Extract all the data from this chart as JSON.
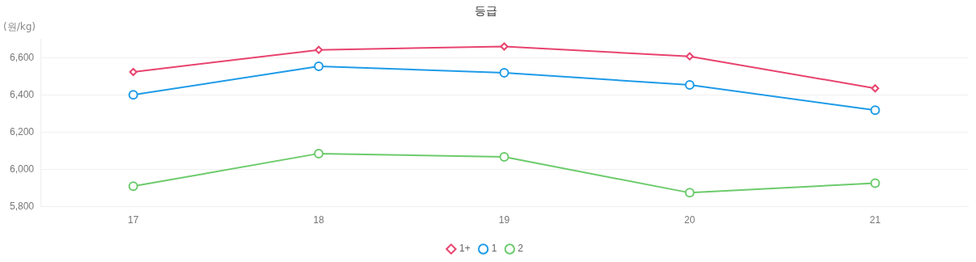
{
  "chart_data": {
    "type": "line",
    "title": "등급",
    "ylabel": "(원/kg)",
    "categories": [
      "17",
      "18",
      "19",
      "20",
      "21"
    ],
    "series": [
      {
        "name": "1+",
        "color": "#e8436e",
        "marker": "diamond",
        "values": [
          6525,
          6644,
          6662,
          6609,
          6437
        ]
      },
      {
        "name": "1",
        "color": "#1e9be8",
        "marker": "circle",
        "values": [
          6402,
          6556,
          6521,
          6455,
          6319
        ]
      },
      {
        "name": "2",
        "color": "#6ccb6c",
        "marker": "circle",
        "values": [
          5910,
          6086,
          6068,
          5875,
          5927
        ]
      }
    ],
    "ylim": [
      5800,
      6700
    ],
    "yticks": [
      {
        "value": 5800,
        "label": "5,800"
      },
      {
        "value": 6000,
        "label": "6,000"
      },
      {
        "value": 6200,
        "label": "6,200"
      },
      {
        "value": 6400,
        "label": "6,400"
      },
      {
        "value": 6600,
        "label": "6,600"
      }
    ],
    "grid": "y",
    "legend": "bottom",
    "line_style": "solid"
  }
}
